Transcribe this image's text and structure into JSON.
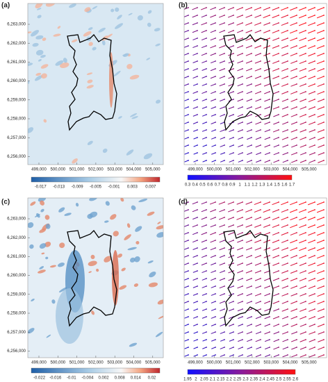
{
  "panels": [
    {
      "label": "(a)",
      "kind": "contour",
      "yticks": [
        "6,263,000",
        "6,262,000",
        "6,261,000",
        "6,260,000",
        "6,259,000",
        "6,258,000",
        "6,257,000",
        "6,256,000"
      ],
      "xticks": [
        "499,000",
        "500,000",
        "501,000",
        "502,000",
        "503,000",
        "504,000",
        "505,000"
      ],
      "colorbar": [
        "-0.017",
        "-0.013",
        "-0.009",
        "-0.005",
        "-0.001",
        "0.003",
        "0.007"
      ]
    },
    {
      "label": "(b)",
      "kind": "vector",
      "xticks": [
        "499,000",
        "500,000",
        "501,000",
        "502,000",
        "503,000",
        "504,000",
        "505,000"
      ],
      "colorbar": [
        "0.3",
        "0.4",
        "0.5",
        "0.6",
        "0.7",
        "0.8",
        "0.9",
        "1",
        "1.1",
        "1.2",
        "1.3",
        "1.4",
        "1.5",
        "1.6",
        "1.7"
      ]
    },
    {
      "label": "(c)",
      "kind": "contour",
      "yticks": [
        "6,263,000",
        "6,262,000",
        "6,261,000",
        "6,260,000",
        "6,259,000",
        "6,258,000",
        "6,257,000",
        "6,256,000"
      ],
      "xticks": [
        "499,000",
        "500,000",
        "501,000",
        "502,000",
        "503,000",
        "504,000",
        "505,000"
      ],
      "colorbar": [
        "-0.022",
        "-0.016",
        "-0.01",
        "-0.004",
        "0.002",
        "0.008",
        "0.014",
        "0.02"
      ]
    },
    {
      "label": "(d)",
      "kind": "vector",
      "xticks": [
        "499,000",
        "500,000",
        "501,000",
        "502,000",
        "503,000",
        "504,000",
        "505,000"
      ],
      "colorbar": [
        "1.95",
        "2",
        "2.05",
        "2.1",
        "2.15",
        "2.2",
        "2.25",
        "2.3",
        "2.35",
        "2.4",
        "2.45",
        "2.5",
        "2.55",
        "2.6"
      ]
    }
  ]
}
